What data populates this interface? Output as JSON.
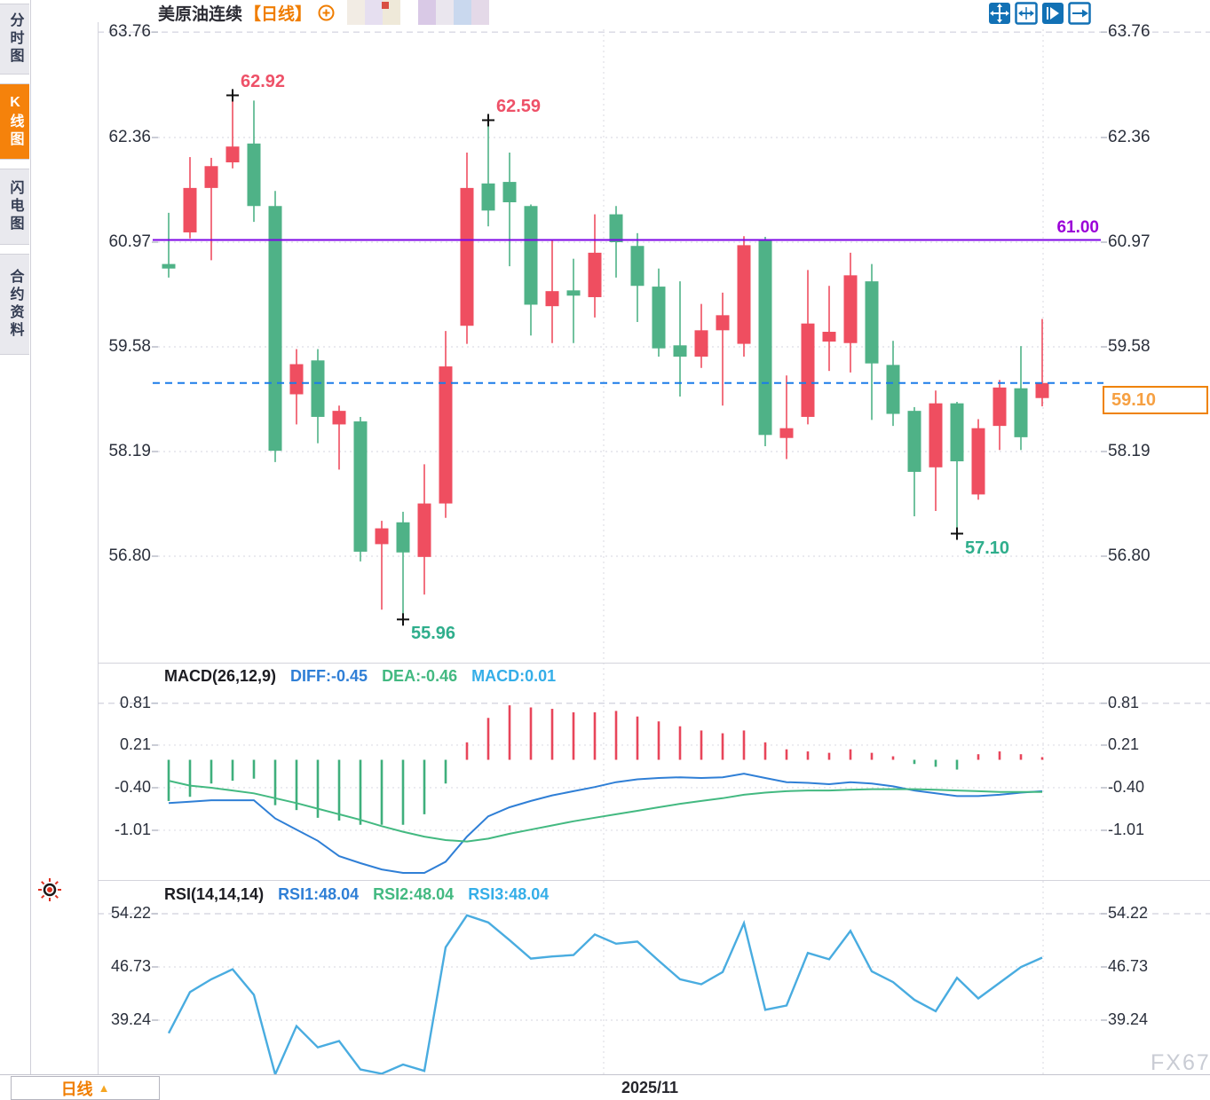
{
  "sidebar": {
    "tabs": [
      {
        "label": "分时图",
        "active": false
      },
      {
        "label": "K线图",
        "active": true
      },
      {
        "label": "闪电图",
        "active": false
      },
      {
        "label": "合约资料",
        "active": false
      }
    ]
  },
  "header": {
    "title": "美原油连续",
    "period_tag": "【日线】"
  },
  "toolbar": {
    "icons": [
      "move-icon",
      "fit-x-axis-icon",
      "autoscale-icon",
      "pan-right-icon"
    ]
  },
  "price_labels": {
    "resistance_line": "61.00",
    "last_price": "59.10"
  },
  "indicators": {
    "macd": {
      "name": "MACD(26,12,9)",
      "diff_label": "DIFF:-0.45",
      "dea_label": "DEA:-0.46",
      "macd_label": "MACD:0.01"
    },
    "rsi": {
      "name": "RSI(14,14,14)",
      "rsi1_label": "RSI1:48.04",
      "rsi2_label": "RSI2:48.04",
      "rsi3_label": "RSI3:48.04"
    }
  },
  "bottom_bar": {
    "period_label": "日线",
    "arrow": "▲",
    "date_label": "2025/11"
  },
  "watermark": "FX678",
  "colors": {
    "up": "#ef4e60",
    "down": "#4fb287",
    "purple_line": "#7d05e6",
    "dashed_line": "#1a7ce8",
    "macd_pos": "#e8455a",
    "macd_neg": "#3faf7c",
    "diff_line": "#2f7fd6",
    "dea_line": "#43b981",
    "rsi_line": "#49ace0",
    "accent_orange": "#f5820b",
    "annotation_high": "#ee5168",
    "annotation_low": "#2fae8c"
  },
  "chart_data": [
    {
      "type": "candlestick",
      "title": "美原油连续【日线】",
      "y_ticks": [
        "63.76",
        "62.36",
        "60.97",
        "59.58",
        "58.19",
        "56.80"
      ],
      "ylim": [
        55.41,
        63.89
      ],
      "x_visible_label": "2025/11",
      "candles": [
        [
          60.68,
          61.36,
          60.5,
          60.62
        ],
        [
          61.1,
          62.1,
          61.02,
          61.69
        ],
        [
          61.69,
          62.09,
          60.73,
          61.98
        ],
        [
          62.03,
          62.92,
          61.95,
          62.24
        ],
        [
          62.28,
          62.85,
          61.24,
          61.45
        ],
        [
          61.45,
          61.65,
          58.05,
          58.2
        ],
        [
          58.95,
          59.55,
          58.55,
          59.35
        ],
        [
          59.4,
          59.55,
          58.3,
          58.65
        ],
        [
          58.55,
          58.8,
          57.95,
          58.73
        ],
        [
          58.59,
          58.65,
          56.73,
          56.86
        ],
        [
          56.96,
          57.27,
          56.09,
          57.17
        ],
        [
          57.25,
          57.39,
          55.96,
          56.85
        ],
        [
          56.79,
          58.02,
          56.29,
          57.5
        ],
        [
          57.5,
          59.79,
          57.31,
          59.32
        ],
        [
          59.86,
          62.16,
          59.62,
          61.69
        ],
        [
          61.75,
          62.59,
          61.18,
          61.39
        ],
        [
          61.77,
          62.16,
          60.65,
          61.5
        ],
        [
          61.45,
          61.47,
          59.73,
          60.14
        ],
        [
          60.12,
          61.01,
          59.63,
          60.32
        ],
        [
          60.33,
          60.75,
          59.63,
          60.26
        ],
        [
          60.24,
          61.34,
          59.97,
          60.83
        ],
        [
          61.34,
          61.45,
          60.5,
          60.97
        ],
        [
          60.92,
          61.09,
          59.91,
          60.39
        ],
        [
          60.38,
          60.62,
          59.45,
          59.56
        ],
        [
          59.6,
          60.45,
          58.92,
          59.45
        ],
        [
          59.45,
          60.15,
          59.3,
          59.8
        ],
        [
          59.8,
          60.3,
          58.8,
          60.0
        ],
        [
          59.62,
          61.05,
          59.45,
          60.93
        ],
        [
          61.01,
          61.04,
          58.26,
          58.41
        ],
        [
          58.37,
          59.2,
          58.09,
          58.5
        ],
        [
          58.65,
          60.6,
          58.55,
          59.89
        ],
        [
          59.65,
          60.39,
          59.26,
          59.78
        ],
        [
          59.63,
          60.83,
          59.24,
          60.53
        ],
        [
          60.45,
          60.68,
          58.61,
          59.36
        ],
        [
          59.34,
          59.66,
          58.53,
          58.69
        ],
        [
          58.73,
          58.78,
          57.33,
          57.92
        ],
        [
          57.98,
          59.0,
          57.4,
          58.83
        ],
        [
          58.83,
          58.85,
          57.1,
          58.06
        ],
        [
          57.62,
          58.62,
          57.55,
          58.5
        ],
        [
          58.53,
          59.14,
          58.21,
          59.04
        ],
        [
          59.03,
          59.59,
          58.21,
          58.38
        ],
        [
          58.9,
          59.95,
          58.79,
          59.1
        ]
      ],
      "annotations": [
        {
          "index": 3,
          "price": 62.92,
          "side": "high",
          "label": "62.92"
        },
        {
          "index": 15,
          "price": 62.59,
          "side": "high",
          "label": "62.59"
        },
        {
          "index": 11,
          "price": 55.96,
          "side": "low",
          "label": "55.96"
        },
        {
          "index": 37,
          "price": 57.1,
          "side": "low",
          "label": "57.10"
        }
      ],
      "h_line": {
        "value": 61.0,
        "label": "61.00"
      },
      "last_price_line": {
        "value": 59.1,
        "label": "59.10"
      }
    },
    {
      "type": "bar",
      "title": "MACD(26,12,9)",
      "y_ticks": [
        "0.81",
        "0.21",
        "-0.40",
        "-1.01"
      ],
      "values_labels": {
        "DIFF": -0.45,
        "DEA": -0.46,
        "MACD": 0.01
      },
      "histogram": [
        -0.59,
        -0.53,
        -0.34,
        -0.3,
        -0.27,
        -0.65,
        -0.72,
        -0.83,
        -0.87,
        -0.93,
        -0.93,
        -0.93,
        -0.78,
        -0.34,
        0.25,
        0.6,
        0.78,
        0.75,
        0.73,
        0.68,
        0.68,
        0.7,
        0.62,
        0.55,
        0.48,
        0.42,
        0.38,
        0.42,
        0.25,
        0.15,
        0.12,
        0.1,
        0.15,
        0.1,
        0.05,
        -0.06,
        -0.1,
        -0.14,
        0.08,
        0.12,
        0.08,
        0.01
      ],
      "series": [
        {
          "name": "DIFF",
          "values": [
            -0.62,
            -0.6,
            -0.58,
            -0.58,
            -0.58,
            -0.84,
            -1.0,
            -1.16,
            -1.38,
            -1.48,
            -1.57,
            -1.62,
            -1.62,
            -1.46,
            -1.1,
            -0.81,
            -0.68,
            -0.59,
            -0.51,
            -0.45,
            -0.39,
            -0.32,
            -0.28,
            -0.26,
            -0.25,
            -0.26,
            -0.25,
            -0.2,
            -0.26,
            -0.32,
            -0.33,
            -0.35,
            -0.32,
            -0.34,
            -0.38,
            -0.44,
            -0.48,
            -0.52,
            -0.52,
            -0.5,
            -0.47,
            -0.45
          ]
        },
        {
          "name": "DEA",
          "values": [
            -0.3,
            -0.37,
            -0.4,
            -0.44,
            -0.48,
            -0.55,
            -0.62,
            -0.7,
            -0.78,
            -0.86,
            -0.95,
            -1.03,
            -1.1,
            -1.15,
            -1.17,
            -1.13,
            -1.06,
            -1.0,
            -0.94,
            -0.88,
            -0.83,
            -0.78,
            -0.73,
            -0.68,
            -0.63,
            -0.59,
            -0.55,
            -0.5,
            -0.47,
            -0.45,
            -0.44,
            -0.44,
            -0.43,
            -0.42,
            -0.42,
            -0.42,
            -0.43,
            -0.44,
            -0.45,
            -0.46,
            -0.46,
            -0.46
          ]
        }
      ]
    },
    {
      "type": "line",
      "title": "RSI(14,14,14)",
      "y_ticks": [
        "54.22",
        "46.73",
        "39.24"
      ],
      "series": [
        {
          "name": "RSI1",
          "values": [
            37.4,
            43.2,
            45.0,
            46.4,
            42.8,
            31.6,
            38.4,
            35.4,
            36.3,
            32.3,
            31.7,
            33.0,
            32.1,
            49.5,
            54.0,
            53.0,
            50.5,
            47.9,
            48.2,
            48.4,
            51.3,
            50.0,
            50.3,
            47.6,
            45.0,
            44.3,
            46.0,
            52.9,
            40.7,
            41.3,
            48.7,
            47.8,
            51.8,
            46.1,
            44.6,
            42.1,
            40.5,
            45.2,
            42.3,
            44.5,
            46.7,
            48.04
          ]
        }
      ]
    }
  ]
}
